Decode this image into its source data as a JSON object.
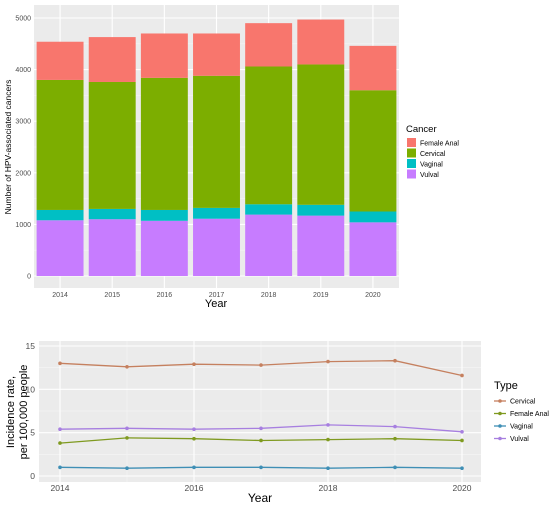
{
  "chart_data": [
    {
      "type": "bar",
      "stacked": true,
      "xlabel": "Year",
      "ylabel": "Number of HPV-associated cancers",
      "categories": [
        "2014",
        "2015",
        "2016",
        "2017",
        "2018",
        "2019",
        "2020"
      ],
      "y_ticks": [
        "0",
        "1000",
        "2000",
        "3000",
        "4000",
        "5000"
      ],
      "ylim": [
        0,
        5000
      ],
      "grid": true,
      "legend": {
        "title": "Cancer",
        "position": "right",
        "entries": [
          {
            "name": "Female Anal",
            "color": "#F8766D"
          },
          {
            "name": "Cervical",
            "color": "#7CAE00"
          },
          {
            "name": "Vaginal",
            "color": "#00BFC4"
          },
          {
            "name": "Vulval",
            "color": "#C77CFF"
          }
        ]
      },
      "series": [
        {
          "name": "Vulval",
          "color": "#C77CFF",
          "values": [
            1080,
            1100,
            1070,
            1110,
            1190,
            1170,
            1040
          ]
        },
        {
          "name": "Vaginal",
          "color": "#00BFC4",
          "values": [
            200,
            200,
            210,
            210,
            200,
            210,
            210
          ]
        },
        {
          "name": "Cervical",
          "color": "#7CAE00",
          "values": [
            2520,
            2460,
            2560,
            2560,
            2670,
            2720,
            2350
          ]
        },
        {
          "name": "Female Anal",
          "color": "#F8766D",
          "values": [
            740,
            870,
            860,
            820,
            840,
            870,
            860
          ]
        }
      ]
    },
    {
      "type": "line",
      "xlabel": "Year",
      "ylabel_line1": "Incidence rate,",
      "ylabel_line2": "per 100,000 people",
      "x": [
        2014,
        2015,
        2016,
        2017,
        2018,
        2019,
        2020
      ],
      "x_ticks": [
        "2014",
        "2016",
        "2018",
        "2020"
      ],
      "y_ticks": [
        "0",
        "5",
        "10",
        "15"
      ],
      "xlim": [
        2014,
        2020
      ],
      "ylim": [
        0,
        15
      ],
      "grid": true,
      "legend": {
        "title": "Type",
        "position": "right",
        "entries": [
          {
            "name": "Cervical",
            "color": "#C5805F"
          },
          {
            "name": "Female Anal",
            "color": "#7F9A20"
          },
          {
            "name": "Vaginal",
            "color": "#3F8FB5"
          },
          {
            "name": "Vulval",
            "color": "#A77FE0"
          }
        ]
      },
      "series": [
        {
          "name": "Cervical",
          "color": "#C5805F",
          "values": [
            13.0,
            12.6,
            12.9,
            12.8,
            13.2,
            13.3,
            11.6
          ]
        },
        {
          "name": "Female Anal",
          "color": "#7F9A20",
          "values": [
            3.8,
            4.4,
            4.3,
            4.1,
            4.2,
            4.3,
            4.1
          ]
        },
        {
          "name": "Vaginal",
          "color": "#3F8FB5",
          "values": [
            1.0,
            0.9,
            1.0,
            1.0,
            0.9,
            1.0,
            0.9
          ]
        },
        {
          "name": "Vulval",
          "color": "#A77FE0",
          "values": [
            5.4,
            5.5,
            5.4,
            5.5,
            5.9,
            5.7,
            5.1
          ]
        }
      ]
    }
  ]
}
